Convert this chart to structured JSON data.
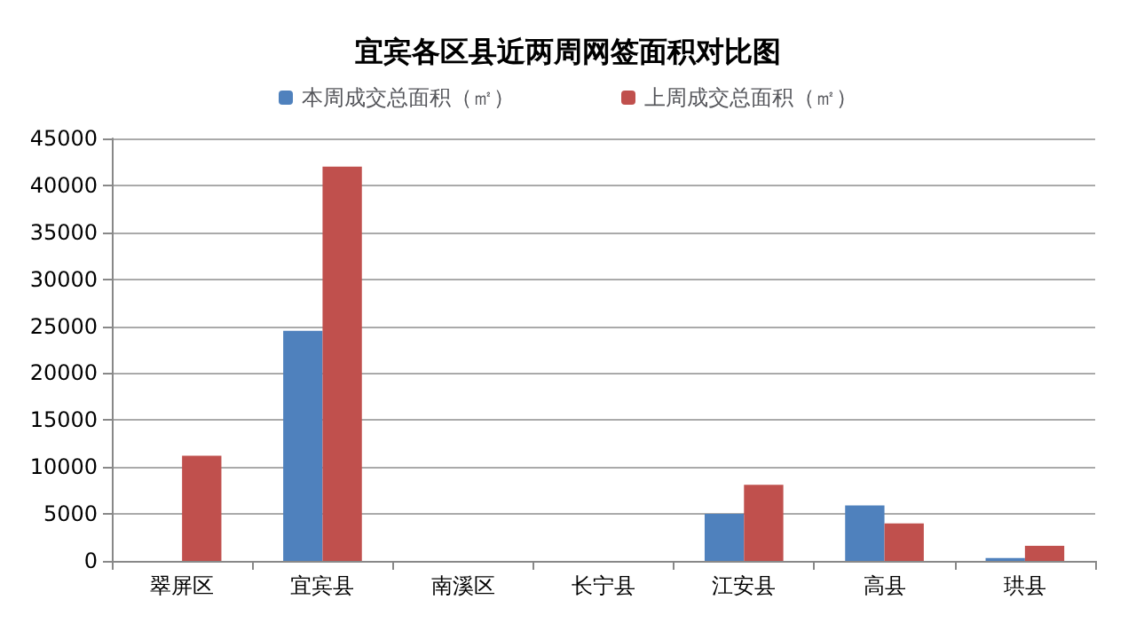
{
  "chart_data": {
    "type": "bar",
    "title": "宜宾各区县近两周网签面积对比图",
    "categories": [
      "翠屏区",
      "宜宾县",
      "南溪区",
      "长宁县",
      "江安县",
      "高县",
      "珙县"
    ],
    "series": [
      {
        "name": "本周成交总面积（㎡）",
        "color": "#4f81bd",
        "values": [
          0,
          24500,
          0,
          0,
          5000,
          5900,
          300
        ]
      },
      {
        "name": "上周成交总面积（㎡）",
        "color": "#c0504d",
        "values": [
          11200,
          42000,
          0,
          0,
          8100,
          4000,
          1600
        ]
      }
    ],
    "ylim": [
      0,
      45000
    ],
    "yticks": [
      0,
      5000,
      10000,
      15000,
      20000,
      25000,
      30000,
      35000,
      40000,
      45000
    ],
    "grid": "y",
    "legend": "top"
  }
}
